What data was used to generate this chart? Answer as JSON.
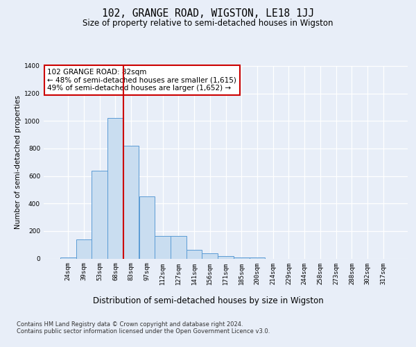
{
  "title": "102, GRANGE ROAD, WIGSTON, LE18 1JJ",
  "subtitle": "Size of property relative to semi-detached houses in Wigston",
  "xlabel": "Distribution of semi-detached houses by size in Wigston",
  "ylabel": "Number of semi-detached properties",
  "categories": [
    "24sqm",
    "39sqm",
    "53sqm",
    "68sqm",
    "83sqm",
    "97sqm",
    "112sqm",
    "127sqm",
    "141sqm",
    "156sqm",
    "171sqm",
    "185sqm",
    "200sqm",
    "214sqm",
    "229sqm",
    "244sqm",
    "258sqm",
    "273sqm",
    "288sqm",
    "302sqm",
    "317sqm"
  ],
  "values": [
    10,
    140,
    640,
    1020,
    820,
    450,
    165,
    165,
    65,
    38,
    20,
    10,
    10,
    0,
    0,
    0,
    0,
    0,
    0,
    0,
    0
  ],
  "bar_color": "#c9ddf0",
  "bar_edgecolor": "#5b9bd5",
  "highlight_line_color": "#cc0000",
  "highlight_line_bar_index": 4,
  "annotation_text": "102 GRANGE ROAD: 82sqm\n← 48% of semi-detached houses are smaller (1,615)\n49% of semi-detached houses are larger (1,652) →",
  "annotation_box_facecolor": "#ffffff",
  "annotation_box_edgecolor": "#cc0000",
  "ylim": [
    0,
    1400
  ],
  "yticks": [
    0,
    200,
    400,
    600,
    800,
    1000,
    1200,
    1400
  ],
  "footer_text": "Contains HM Land Registry data © Crown copyright and database right 2024.\nContains public sector information licensed under the Open Government Licence v3.0.",
  "background_color": "#e8eef8",
  "plot_background_color": "#e8eef8",
  "grid_color": "#ffffff",
  "title_fontsize": 10.5,
  "subtitle_fontsize": 8.5,
  "xlabel_fontsize": 8.5,
  "ylabel_fontsize": 7.5,
  "tick_fontsize": 6.5,
  "annotation_fontsize": 7.5,
  "footer_fontsize": 6.0
}
